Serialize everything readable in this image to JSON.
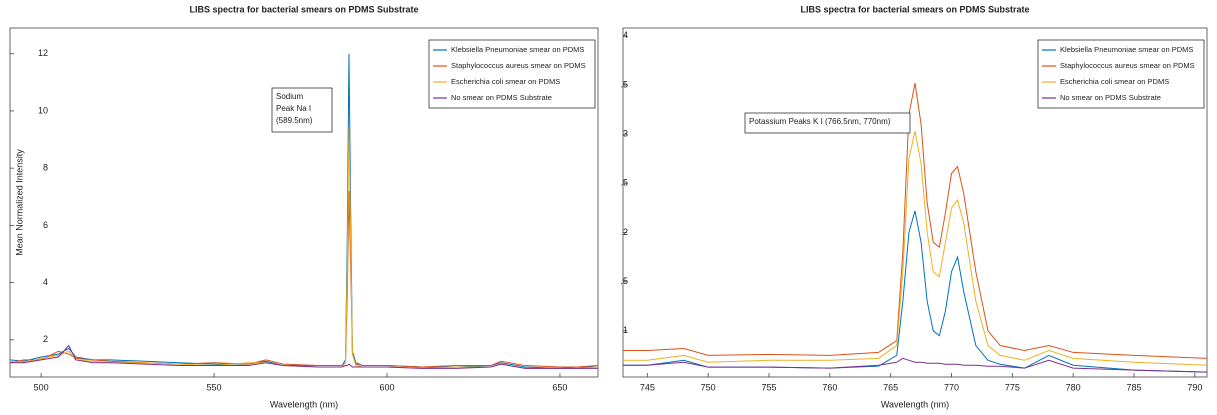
{
  "chart_data": [
    {
      "type": "line",
      "title": "LIBS spectra for bacterial smears on PDMS Substrate",
      "x_label": "Wavelength (nm)",
      "y_label": "Mean Normalized Intensity",
      "annotation": [
        "Sodium",
        "Peak Na I",
        "(589.5nm)"
      ],
      "legend": "top right",
      "grid": false,
      "xlim": [
        491,
        661
      ],
      "ylim": [
        0.7,
        12.9
      ],
      "xticks": [
        500,
        550,
        600,
        650
      ],
      "yticks": [
        2,
        4,
        6,
        8,
        10,
        12
      ],
      "x": [
        491,
        495,
        500,
        505,
        508,
        510,
        515,
        520,
        530,
        540,
        550,
        560,
        565,
        570,
        580,
        585,
        587,
        588,
        588.5,
        589,
        589.5,
        590,
        591,
        593,
        600,
        610,
        620,
        630,
        633,
        640,
        650,
        655,
        661
      ],
      "series": [
        {
          "name": "Klebsiella Pneumoniae smear on PDMS",
          "color": "#0072BD",
          "values": [
            1.3,
            1.25,
            1.4,
            1.5,
            1.7,
            1.4,
            1.3,
            1.3,
            1.25,
            1.2,
            1.15,
            1.15,
            1.25,
            1.1,
            1.1,
            1.1,
            1.1,
            1.3,
            5.5,
            12,
            6.5,
            1.6,
            1.2,
            1.1,
            1.1,
            1.05,
            1.05,
            1.1,
            1.2,
            1.05,
            1.0,
            1.05,
            1.05
          ]
        },
        {
          "name": "Staphylococcus aureus smear on PDMS",
          "color": "#D95319",
          "values": [
            1.2,
            1.3,
            1.3,
            1.6,
            1.5,
            1.35,
            1.3,
            1.25,
            1.2,
            1.15,
            1.2,
            1.15,
            1.3,
            1.15,
            1.1,
            1.1,
            1.1,
            1.2,
            3.5,
            7.2,
            4.5,
            1.5,
            1.15,
            1.1,
            1.1,
            1.05,
            1.1,
            1.1,
            1.25,
            1.1,
            1.05,
            1.05,
            1.1
          ]
        },
        {
          "name": "Escherichia coli smear on PDMS",
          "color": "#EDB120",
          "values": [
            1.25,
            1.2,
            1.35,
            1.45,
            1.6,
            1.3,
            1.25,
            1.2,
            1.2,
            1.15,
            1.1,
            1.2,
            1.2,
            1.1,
            1.05,
            1.05,
            1.05,
            1.2,
            4.5,
            9.4,
            5.5,
            1.5,
            1.1,
            1.05,
            1.05,
            1.0,
            1.05,
            1.05,
            1.15,
            1.0,
            1.0,
            1.0,
            1.05
          ]
        },
        {
          "name": "No smear on PDMS Substrate",
          "color": "#7E2F8E",
          "values": [
            1.2,
            1.2,
            1.3,
            1.4,
            1.8,
            1.3,
            1.2,
            1.2,
            1.15,
            1.1,
            1.1,
            1.1,
            1.2,
            1.1,
            1.05,
            1.05,
            1.05,
            1.1,
            1.1,
            1.15,
            1.1,
            1.05,
            1.05,
            1.05,
            1.05,
            1.0,
            1.0,
            1.05,
            1.15,
            1.0,
            1.0,
            1.0,
            1.0
          ]
        }
      ]
    },
    {
      "type": "line",
      "title": "LIBS spectra for bacterial smears on PDMS Substrate",
      "x_label": "Wavelength (nm)",
      "annotation": [
        "Potassium Peaks K I (766.5nm, 770nm)"
      ],
      "legend": "top right",
      "grid": false,
      "xlim": [
        743,
        791
      ],
      "ylim": [
        0.53,
        4.08
      ],
      "xticks": [
        745,
        750,
        755,
        760,
        765,
        770,
        775,
        780,
        785,
        790
      ],
      "yticks": [
        1,
        {
          "value": 1.5,
          "label": ".5"
        },
        2,
        {
          "value": 2.5,
          "label": ".5"
        },
        3,
        {
          "value": 3.5,
          "label": ".5"
        },
        4
      ],
      "x": [
        743,
        745,
        748,
        750,
        755,
        760,
        764,
        765.5,
        766,
        766.5,
        767,
        767.5,
        768,
        768.5,
        769,
        769.5,
        770,
        770.5,
        771,
        772,
        773,
        774,
        776,
        778,
        780,
        785,
        791
      ],
      "series": [
        {
          "name": "Klebsiella Pneumoniae smear on PDMS",
          "color": "#0072BD",
          "values": [
            0.65,
            0.65,
            0.7,
            0.63,
            0.63,
            0.62,
            0.64,
            0.75,
            1.3,
            2.0,
            2.22,
            1.9,
            1.3,
            1.0,
            0.95,
            1.2,
            1.6,
            1.75,
            1.4,
            0.85,
            0.7,
            0.66,
            0.62,
            0.75,
            0.65,
            0.6,
            0.58
          ]
        },
        {
          "name": "Staphylococcus aureus smear on PDMS",
          "color": "#D95319",
          "values": [
            0.8,
            0.8,
            0.82,
            0.75,
            0.76,
            0.75,
            0.78,
            0.9,
            1.8,
            3.2,
            3.52,
            3.1,
            2.3,
            1.9,
            1.85,
            2.2,
            2.6,
            2.67,
            2.4,
            1.6,
            1.0,
            0.85,
            0.8,
            0.85,
            0.78,
            0.75,
            0.72
          ]
        },
        {
          "name": "Escherichia coli smear on PDMS",
          "color": "#EDB120",
          "values": [
            0.7,
            0.7,
            0.75,
            0.68,
            0.7,
            0.7,
            0.72,
            0.85,
            1.6,
            2.75,
            3.03,
            2.7,
            2.0,
            1.6,
            1.55,
            1.9,
            2.25,
            2.33,
            2.1,
            1.3,
            0.85,
            0.75,
            0.7,
            0.8,
            0.72,
            0.68,
            0.65
          ]
        },
        {
          "name": "No smear on PDMS Substrate",
          "color": "#7E2F8E",
          "values": [
            0.65,
            0.65,
            0.68,
            0.63,
            0.63,
            0.62,
            0.65,
            0.68,
            0.72,
            0.7,
            0.68,
            0.68,
            0.67,
            0.67,
            0.67,
            0.66,
            0.66,
            0.66,
            0.65,
            0.65,
            0.64,
            0.64,
            0.62,
            0.7,
            0.62,
            0.6,
            0.58
          ]
        }
      ]
    }
  ]
}
